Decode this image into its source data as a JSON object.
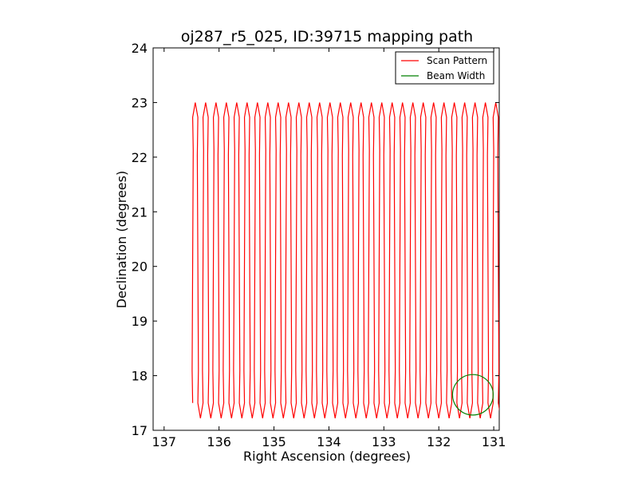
{
  "chart_data": {
    "type": "line",
    "title": "oj287_r5_025, ID:39715 mapping path",
    "xlabel": "Right Ascension (degrees)",
    "ylabel": "Declination (degrees)",
    "xlim": [
      137.2,
      130.9
    ],
    "ylim": [
      17,
      24
    ],
    "x_axis_inverted": true,
    "xticks": [
      "137",
      "136",
      "135",
      "134",
      "133",
      "132",
      "131"
    ],
    "yticks": [
      "17",
      "18",
      "19",
      "20",
      "21",
      "22",
      "23",
      "24"
    ],
    "grid": false,
    "legend_position": "top-right",
    "scan_pattern": {
      "name": "Scan Pattern",
      "color": "#ff0000",
      "ra_start": 136.48,
      "ra_step": -0.0943,
      "leg_count": 60,
      "dec_min": 17.22,
      "dec_max": 23.0
    },
    "beam_width": {
      "name": "Beam Width",
      "color": "#008000",
      "center_ra": 131.38,
      "center_dec": 17.65,
      "radius_deg": 0.37
    }
  }
}
